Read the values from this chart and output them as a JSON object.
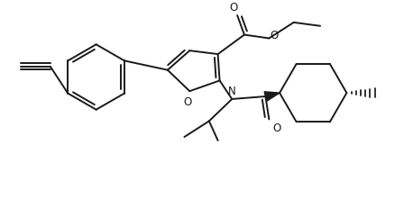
{
  "bg_color": "#ffffff",
  "line_color": "#1a1a1a",
  "line_width": 1.4,
  "figsize": [
    4.48,
    2.42
  ],
  "dpi": 100,
  "xlim": [
    0,
    4.48
  ],
  "ylim": [
    0,
    2.42
  ]
}
